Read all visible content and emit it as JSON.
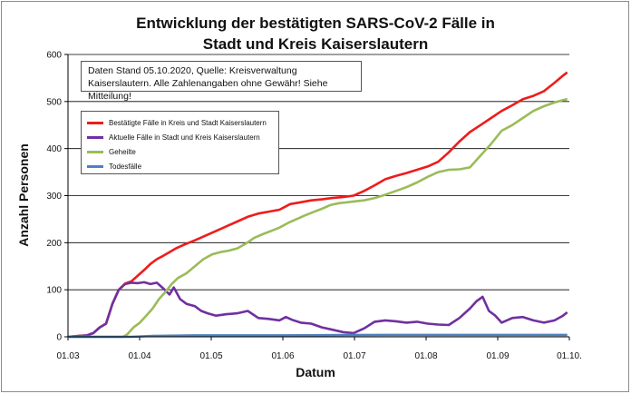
{
  "chart_data": {
    "type": "line",
    "title_line1": "Entwicklung der bestätigten SARS-CoV-2 Fälle in",
    "title_line2": "Stadt und Kreis Kaiserslautern",
    "xlabel": "Datum",
    "ylabel": "Anzahl Personen",
    "annotation_line1": "Daten Stand 05.10.2020, Quelle: Kreisverwaltung",
    "annotation_line2": "Kaiserslautern. Alle Zahlenangaben ohne Gewähr! Siehe Mitteilung!",
    "x_ticks": [
      "01.03",
      "01.04",
      "01.05",
      "01.06",
      "01.07",
      "01.08",
      "01.09",
      "01.10."
    ],
    "y_ticks": [
      0,
      100,
      200,
      300,
      400,
      500,
      600
    ],
    "ylim": [
      0,
      600
    ],
    "grid": "horizontal",
    "legend_position": "top-left",
    "series": [
      {
        "name": "Bestätigte Fälle in Kreis und Stadt Kaiserslautern",
        "color": "#ee1c1c",
        "points": [
          [
            0,
            0
          ],
          [
            5,
            2
          ],
          [
            9,
            3
          ],
          [
            12,
            8
          ],
          [
            15,
            20
          ],
          [
            18,
            28
          ],
          [
            21,
            70
          ],
          [
            24,
            100
          ],
          [
            27,
            113
          ],
          [
            30,
            118
          ],
          [
            33,
            130
          ],
          [
            36,
            142
          ],
          [
            39,
            155
          ],
          [
            42,
            165
          ],
          [
            45,
            172
          ],
          [
            48,
            180
          ],
          [
            51,
            188
          ],
          [
            55,
            196
          ],
          [
            60,
            205
          ],
          [
            65,
            215
          ],
          [
            70,
            225
          ],
          [
            75,
            235
          ],
          [
            80,
            245
          ],
          [
            85,
            255
          ],
          [
            90,
            262
          ],
          [
            95,
            266
          ],
          [
            100,
            270
          ],
          [
            105,
            282
          ],
          [
            110,
            286
          ],
          [
            115,
            290
          ],
          [
            120,
            292
          ],
          [
            125,
            295
          ],
          [
            130,
            297
          ],
          [
            135,
            300
          ],
          [
            140,
            310
          ],
          [
            145,
            322
          ],
          [
            150,
            335
          ],
          [
            155,
            342
          ],
          [
            160,
            348
          ],
          [
            165,
            355
          ],
          [
            170,
            362
          ],
          [
            175,
            372
          ],
          [
            180,
            392
          ],
          [
            185,
            415
          ],
          [
            190,
            435
          ],
          [
            195,
            450
          ],
          [
            200,
            465
          ],
          [
            205,
            480
          ],
          [
            210,
            492
          ],
          [
            215,
            505
          ],
          [
            220,
            512
          ],
          [
            225,
            522
          ],
          [
            230,
            540
          ],
          [
            234,
            555
          ],
          [
            236,
            562
          ]
        ]
      },
      {
        "name": "Aktuelle Fälle in Stadt und Kreis Kaiserslautern",
        "color": "#7030a0",
        "points": [
          [
            0,
            0
          ],
          [
            5,
            2
          ],
          [
            9,
            3
          ],
          [
            12,
            8
          ],
          [
            15,
            20
          ],
          [
            18,
            28
          ],
          [
            21,
            70
          ],
          [
            24,
            100
          ],
          [
            27,
            112
          ],
          [
            30,
            115
          ],
          [
            33,
            114
          ],
          [
            36,
            116
          ],
          [
            39,
            112
          ],
          [
            42,
            115
          ],
          [
            45,
            103
          ],
          [
            48,
            90
          ],
          [
            50,
            105
          ],
          [
            53,
            80
          ],
          [
            56,
            70
          ],
          [
            60,
            65
          ],
          [
            63,
            55
          ],
          [
            66,
            50
          ],
          [
            70,
            45
          ],
          [
            75,
            48
          ],
          [
            80,
            50
          ],
          [
            85,
            55
          ],
          [
            90,
            40
          ],
          [
            95,
            38
          ],
          [
            100,
            35
          ],
          [
            103,
            42
          ],
          [
            106,
            36
          ],
          [
            110,
            30
          ],
          [
            115,
            28
          ],
          [
            120,
            20
          ],
          [
            125,
            15
          ],
          [
            130,
            10
          ],
          [
            135,
            8
          ],
          [
            140,
            18
          ],
          [
            145,
            32
          ],
          [
            150,
            35
          ],
          [
            155,
            33
          ],
          [
            160,
            30
          ],
          [
            165,
            32
          ],
          [
            170,
            28
          ],
          [
            175,
            26
          ],
          [
            180,
            25
          ],
          [
            185,
            40
          ],
          [
            190,
            60
          ],
          [
            193,
            75
          ],
          [
            196,
            85
          ],
          [
            199,
            55
          ],
          [
            202,
            45
          ],
          [
            205,
            30
          ],
          [
            210,
            40
          ],
          [
            215,
            42
          ],
          [
            220,
            35
          ],
          [
            225,
            30
          ],
          [
            230,
            35
          ],
          [
            234,
            45
          ],
          [
            236,
            52
          ]
        ]
      },
      {
        "name": "Geheilte",
        "color": "#9bbb59",
        "points": [
          [
            0,
            0
          ],
          [
            20,
            0
          ],
          [
            26,
            0
          ],
          [
            28,
            5
          ],
          [
            31,
            20
          ],
          [
            34,
            30
          ],
          [
            37,
            45
          ],
          [
            40,
            60
          ],
          [
            43,
            80
          ],
          [
            46,
            95
          ],
          [
            49,
            112
          ],
          [
            52,
            125
          ],
          [
            56,
            135
          ],
          [
            60,
            150
          ],
          [
            64,
            165
          ],
          [
            68,
            175
          ],
          [
            72,
            180
          ],
          [
            76,
            183
          ],
          [
            80,
            188
          ],
          [
            84,
            198
          ],
          [
            88,
            210
          ],
          [
            92,
            218
          ],
          [
            96,
            225
          ],
          [
            100,
            232
          ],
          [
            104,
            242
          ],
          [
            108,
            250
          ],
          [
            112,
            258
          ],
          [
            116,
            265
          ],
          [
            120,
            272
          ],
          [
            124,
            280
          ],
          [
            128,
            284
          ],
          [
            132,
            286
          ],
          [
            136,
            288
          ],
          [
            140,
            290
          ],
          [
            145,
            295
          ],
          [
            150,
            302
          ],
          [
            155,
            310
          ],
          [
            160,
            318
          ],
          [
            165,
            328
          ],
          [
            170,
            340
          ],
          [
            175,
            350
          ],
          [
            180,
            355
          ],
          [
            185,
            356
          ],
          [
            190,
            360
          ],
          [
            195,
            385
          ],
          [
            200,
            410
          ],
          [
            205,
            438
          ],
          [
            210,
            450
          ],
          [
            215,
            465
          ],
          [
            220,
            480
          ],
          [
            225,
            490
          ],
          [
            230,
            498
          ],
          [
            234,
            503
          ],
          [
            236,
            505
          ]
        ]
      },
      {
        "name": "Todesfälle",
        "color": "#4f81bd",
        "points": [
          [
            0,
            0
          ],
          [
            30,
            0
          ],
          [
            40,
            2
          ],
          [
            60,
            3
          ],
          [
            100,
            3
          ],
          [
            150,
            4
          ],
          [
            200,
            4
          ],
          [
            236,
            4
          ]
        ]
      }
    ]
  }
}
